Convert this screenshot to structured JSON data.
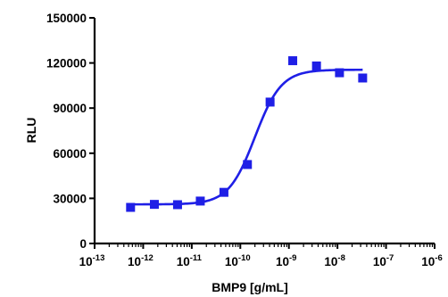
{
  "chart_data": {
    "type": "scatter",
    "title": "",
    "xlabel": "BMP9 [g/mL]",
    "ylabel": "RLU",
    "x_scale": "log10",
    "xlim": [
      1e-13,
      1e-06
    ],
    "ylim": [
      0,
      150000
    ],
    "y_ticks": [
      0,
      30000,
      60000,
      90000,
      120000,
      150000
    ],
    "y_tick_labels": [
      "0",
      "30000",
      "60000",
      "90000",
      "120000",
      "150000"
    ],
    "x_ticks": [
      {
        "base": "10",
        "exp": "-13"
      },
      {
        "base": "10",
        "exp": "-12"
      },
      {
        "base": "10",
        "exp": "-11"
      },
      {
        "base": "10",
        "exp": "-10"
      },
      {
        "base": "10",
        "exp": "-9"
      },
      {
        "base": "10",
        "exp": "-8"
      },
      {
        "base": "10",
        "exp": "-7"
      },
      {
        "base": "10",
        "exp": "-6"
      }
    ],
    "grid": false,
    "legend": "none",
    "marker": "square",
    "color": "#1f1fe6",
    "series": [
      {
        "points": [
          {
            "x": 5.5e-13,
            "y": 24000
          },
          {
            "x": 1.7e-12,
            "y": 26000
          },
          {
            "x": 5.1e-12,
            "y": 25800
          },
          {
            "x": 1.5e-11,
            "y": 28200
          },
          {
            "x": 4.6e-11,
            "y": 34000
          },
          {
            "x": 1.4e-10,
            "y": 52500
          },
          {
            "x": 4.1e-10,
            "y": 94000
          },
          {
            "x": 1.2e-09,
            "y": 121500
          },
          {
            "x": 3.7e-09,
            "y": 118000
          },
          {
            "x": 1.1e-08,
            "y": 113500
          },
          {
            "x": 3.3e-08,
            "y": 110000
          }
        ],
        "fit": {
          "model": "4PL",
          "bottom": 26000,
          "top": 115500,
          "ec50": 2e-10,
          "hill": 1.6,
          "x_range": [
            5.5e-13,
            3.3e-08
          ]
        }
      }
    ]
  }
}
